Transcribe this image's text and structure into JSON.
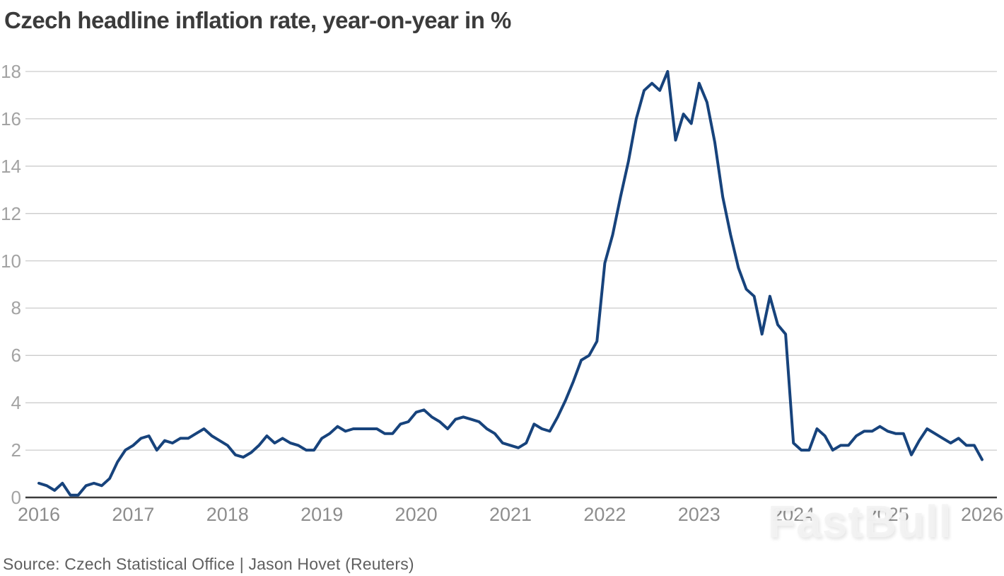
{
  "chart": {
    "title": "Czech headline inflation rate, year-on-year in %",
    "source": "Source: Czech Statistical Office  | Jason Hovet (Reuters)",
    "watermark": "FastBull"
  },
  "chart_data": {
    "type": "line",
    "title": "Czech headline inflation rate, year-on-year in %",
    "xlabel": "",
    "ylabel": "",
    "frequency": "monthly",
    "x_start": "2016-01",
    "x_end": "2026-01",
    "xticks": [
      "2016",
      "2017",
      "2018",
      "2019",
      "2020",
      "2021",
      "2022",
      "2023",
      "2024",
      "2025",
      "2026"
    ],
    "yticks": [
      0,
      2,
      4,
      6,
      8,
      10,
      12,
      14,
      16,
      18
    ],
    "ylim": [
      0,
      18
    ],
    "grid": "horizontal",
    "legend": "none",
    "series": [
      {
        "name": "Czech headline inflation rate (% y/y)",
        "values": [
          0.6,
          0.5,
          0.3,
          0.6,
          0.1,
          0.1,
          0.5,
          0.6,
          0.5,
          0.8,
          1.5,
          2.0,
          2.2,
          2.5,
          2.6,
          2.0,
          2.4,
          2.3,
          2.5,
          2.5,
          2.7,
          2.9,
          2.6,
          2.4,
          2.2,
          1.8,
          1.7,
          1.9,
          2.2,
          2.6,
          2.3,
          2.5,
          2.3,
          2.2,
          2.0,
          2.0,
          2.5,
          2.7,
          3.0,
          2.8,
          2.9,
          2.9,
          2.9,
          2.9,
          2.7,
          2.7,
          3.1,
          3.2,
          3.6,
          3.7,
          3.4,
          3.2,
          2.9,
          3.3,
          3.4,
          3.3,
          3.2,
          2.9,
          2.7,
          2.3,
          2.2,
          2.1,
          2.3,
          3.1,
          2.9,
          2.8,
          3.4,
          4.1,
          4.9,
          5.8,
          6.0,
          6.6,
          9.9,
          11.1,
          12.7,
          14.2,
          16.0,
          17.2,
          17.5,
          17.2,
          18.0,
          15.1,
          16.2,
          15.8,
          17.5,
          16.7,
          15.0,
          12.7,
          11.1,
          9.7,
          8.8,
          8.5,
          6.9,
          8.5,
          7.3,
          6.9,
          2.3,
          2.0,
          2.0,
          2.9,
          2.6,
          2.0,
          2.2,
          2.2,
          2.6,
          2.8,
          2.8,
          3.0,
          2.8,
          2.7,
          2.7,
          1.8,
          2.4,
          2.9,
          2.7,
          2.5,
          2.3,
          2.5,
          2.2,
          2.2,
          1.6
        ]
      }
    ],
    "colors": {
      "line": "#17437c",
      "grid": "#cccccc",
      "axis": "#3c3c3c",
      "title_text": "#3b3b3b",
      "tick_text": "#9b9b9b",
      "source_text": "#5f5f5f"
    }
  }
}
